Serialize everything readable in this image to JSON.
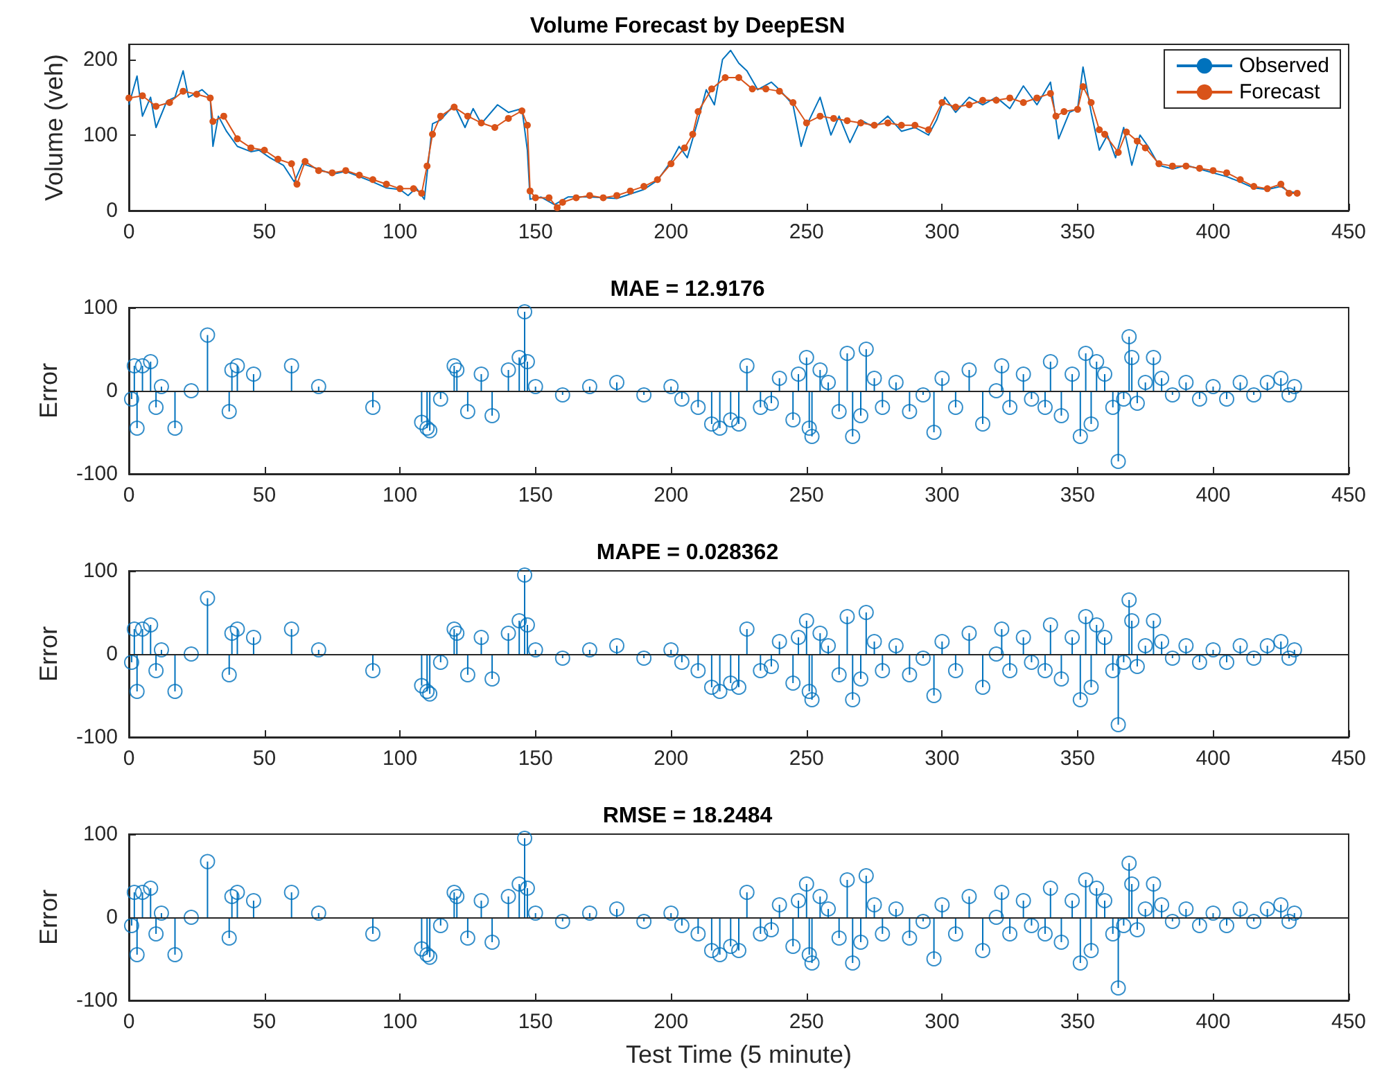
{
  "chart_data": [
    {
      "type": "line",
      "title": "Volume Forecast by DeepESN",
      "ylabel": "Volume (veh)",
      "xlim": [
        0,
        450
      ],
      "xticks": [
        0,
        50,
        100,
        150,
        200,
        250,
        300,
        350,
        400,
        450
      ],
      "ylim": [
        0,
        220
      ],
      "yticks": [
        0,
        100,
        200
      ],
      "grid": false,
      "legend": "top right",
      "series": [
        {
          "name": "Observed",
          "color": "#0072bd",
          "marker": "none",
          "x": [
            0,
            3,
            5,
            8,
            10,
            14,
            17,
            20,
            22,
            27,
            30,
            31,
            33,
            36,
            40,
            45,
            48,
            52,
            57,
            61,
            64,
            70,
            75,
            80,
            85,
            90,
            95,
            100,
            103,
            106,
            109,
            112,
            115,
            120,
            124,
            127,
            130,
            136,
            140,
            145,
            147,
            148,
            152,
            157,
            162,
            170,
            180,
            190,
            195,
            200,
            203,
            206,
            210,
            213,
            216,
            219,
            222,
            225,
            228,
            232,
            237,
            240,
            245,
            248,
            251,
            255,
            259,
            262,
            266,
            270,
            275,
            280,
            285,
            290,
            295,
            298,
            301,
            305,
            310,
            315,
            320,
            325,
            330,
            335,
            340,
            343,
            347,
            350,
            352,
            355,
            358,
            361,
            364,
            367,
            370,
            373,
            376,
            380,
            385,
            390,
            395,
            400,
            405,
            410,
            415,
            420,
            425,
            428,
            430
          ],
          "values": [
            140,
            178,
            125,
            150,
            110,
            145,
            150,
            185,
            150,
            160,
            150,
            85,
            125,
            105,
            85,
            78,
            80,
            70,
            60,
            38,
            62,
            55,
            48,
            52,
            45,
            38,
            30,
            28,
            20,
            30,
            15,
            115,
            120,
            140,
            110,
            135,
            115,
            140,
            130,
            135,
            80,
            15,
            18,
            8,
            18,
            18,
            16,
            28,
            40,
            65,
            85,
            70,
            120,
            160,
            140,
            200,
            212,
            195,
            185,
            160,
            170,
            160,
            140,
            85,
            120,
            150,
            100,
            125,
            90,
            120,
            110,
            125,
            105,
            110,
            100,
            120,
            150,
            130,
            150,
            140,
            150,
            135,
            165,
            140,
            170,
            95,
            130,
            135,
            190,
            130,
            80,
            100,
            70,
            110,
            60,
            100,
            85,
            60,
            55,
            60,
            55,
            50,
            45,
            38,
            30,
            28,
            32,
            25,
            24
          ]
        },
        {
          "name": "Forecast",
          "color": "#d95319",
          "marker": "circle",
          "x": [
            0,
            5,
            10,
            15,
            20,
            25,
            30,
            31,
            35,
            40,
            45,
            50,
            55,
            60,
            62,
            65,
            70,
            75,
            80,
            85,
            90,
            95,
            100,
            105,
            108,
            110,
            112,
            115,
            120,
            125,
            130,
            135,
            140,
            145,
            147,
            148,
            150,
            155,
            158,
            160,
            165,
            170,
            175,
            180,
            185,
            190,
            195,
            200,
            205,
            208,
            210,
            215,
            220,
            225,
            230,
            235,
            240,
            245,
            250,
            255,
            260,
            265,
            270,
            275,
            280,
            285,
            290,
            295,
            300,
            305,
            310,
            315,
            320,
            325,
            330,
            335,
            340,
            342,
            345,
            350,
            352,
            355,
            358,
            360,
            365,
            368,
            372,
            375,
            380,
            385,
            390,
            395,
            400,
            405,
            410,
            415,
            420,
            425,
            428,
            431
          ],
          "values": [
            149,
            152,
            138,
            143,
            158,
            154,
            149,
            118,
            125,
            95,
            83,
            80,
            68,
            62,
            35,
            65,
            53,
            50,
            53,
            47,
            41,
            35,
            29,
            29,
            23,
            59,
            101,
            125,
            137,
            125,
            116,
            110,
            122,
            132,
            113,
            26,
            17,
            17,
            4,
            11,
            17,
            20,
            17,
            20,
            26,
            32,
            41,
            62,
            83,
            101,
            131,
            161,
            176,
            176,
            161,
            161,
            158,
            143,
            116,
            125,
            122,
            119,
            116,
            113,
            116,
            113,
            113,
            107,
            143,
            137,
            140,
            146,
            146,
            149,
            143,
            149,
            155,
            125,
            131,
            134,
            164,
            143,
            107,
            101,
            77,
            104,
            92,
            83,
            62,
            59,
            59,
            56,
            53,
            50,
            41,
            32,
            29,
            35,
            23,
            23
          ]
        }
      ]
    },
    {
      "type": "lollipop",
      "title": "MAE = 12.9176",
      "ylabel": "Error",
      "xlim": [
        0,
        450
      ],
      "xticks": [
        0,
        50,
        100,
        150,
        200,
        250,
        300,
        350,
        400,
        450
      ],
      "ylim": [
        -100,
        100
      ],
      "yticks": [
        -100,
        0,
        100
      ],
      "grid": false,
      "marker": "circle",
      "ref_lines": [
        {
          "axis": "y",
          "value": 0,
          "color": "#262626"
        }
      ],
      "series": [
        {
          "color": "#0072bd",
          "x": [
            1,
            2,
            3,
            5,
            8,
            10,
            12,
            17,
            23,
            29,
            37,
            38,
            40,
            46,
            60,
            70,
            90,
            108,
            110,
            111,
            115,
            120,
            121,
            125,
            130,
            134,
            140,
            144,
            146,
            147,
            150,
            160,
            170,
            180,
            190,
            200,
            204,
            210,
            215,
            218,
            222,
            225,
            228,
            233,
            237,
            240,
            245,
            247,
            250,
            251,
            252,
            255,
            258,
            262,
            265,
            267,
            270,
            272,
            275,
            278,
            283,
            288,
            293,
            297,
            300,
            305,
            310,
            315,
            320,
            322,
            325,
            330,
            333,
            338,
            340,
            344,
            348,
            351,
            353,
            355,
            357,
            360,
            363,
            365,
            367,
            369,
            370,
            372,
            375,
            378,
            381,
            385,
            390,
            395,
            400,
            405,
            410,
            415,
            420,
            425,
            428,
            430
          ],
          "values": [
            -10,
            30,
            -45,
            30,
            35,
            -20,
            5,
            -45,
            0,
            67,
            -25,
            25,
            30,
            20,
            30,
            5,
            -20,
            -38,
            -45,
            -48,
            -10,
            30,
            25,
            -25,
            20,
            -30,
            25,
            40,
            95,
            35,
            5,
            -5,
            5,
            10,
            -5,
            5,
            -10,
            -20,
            -40,
            -45,
            -35,
            -40,
            30,
            -20,
            -15,
            15,
            -35,
            20,
            40,
            -45,
            -55,
            25,
            10,
            -25,
            45,
            -55,
            -30,
            50,
            15,
            -20,
            10,
            -25,
            -5,
            -50,
            15,
            -20,
            25,
            -40,
            0,
            30,
            -20,
            20,
            -10,
            -20,
            35,
            -30,
            20,
            -55,
            45,
            -40,
            35,
            20,
            -20,
            -85,
            -10,
            65,
            40,
            -15,
            10,
            40,
            15,
            -5,
            10,
            -10,
            5,
            -10,
            10,
            -5,
            10,
            15,
            -5,
            5
          ]
        }
      ]
    },
    {
      "type": "lollipop",
      "title": "MAPE = 0.028362",
      "ylabel": "Error",
      "xlim": [
        0,
        450
      ],
      "xticks": [
        0,
        50,
        100,
        150,
        200,
        250,
        300,
        350,
        400,
        450
      ],
      "ylim": [
        -100,
        100
      ],
      "yticks": [
        -100,
        0,
        100
      ],
      "grid": false,
      "marker": "circle",
      "ref_lines": [
        {
          "axis": "y",
          "value": 0,
          "color": "#262626"
        }
      ],
      "series": [
        {
          "color": "#0072bd",
          "x": [
            1,
            2,
            3,
            5,
            8,
            10,
            12,
            17,
            23,
            29,
            37,
            38,
            40,
            46,
            60,
            70,
            90,
            108,
            110,
            111,
            115,
            120,
            121,
            125,
            130,
            134,
            140,
            144,
            146,
            147,
            150,
            160,
            170,
            180,
            190,
            200,
            204,
            210,
            215,
            218,
            222,
            225,
            228,
            233,
            237,
            240,
            245,
            247,
            250,
            251,
            252,
            255,
            258,
            262,
            265,
            267,
            270,
            272,
            275,
            278,
            283,
            288,
            293,
            297,
            300,
            305,
            310,
            315,
            320,
            322,
            325,
            330,
            333,
            338,
            340,
            344,
            348,
            351,
            353,
            355,
            357,
            360,
            363,
            365,
            367,
            369,
            370,
            372,
            375,
            378,
            381,
            385,
            390,
            395,
            400,
            405,
            410,
            415,
            420,
            425,
            428,
            430
          ],
          "values": [
            -10,
            30,
            -45,
            30,
            35,
            -20,
            5,
            -45,
            0,
            67,
            -25,
            25,
            30,
            20,
            30,
            5,
            -20,
            -38,
            -45,
            -48,
            -10,
            30,
            25,
            -25,
            20,
            -30,
            25,
            40,
            95,
            35,
            5,
            -5,
            5,
            10,
            -5,
            5,
            -10,
            -20,
            -40,
            -45,
            -35,
            -40,
            30,
            -20,
            -15,
            15,
            -35,
            20,
            40,
            -45,
            -55,
            25,
            10,
            -25,
            45,
            -55,
            -30,
            50,
            15,
            -20,
            10,
            -25,
            -5,
            -50,
            15,
            -20,
            25,
            -40,
            0,
            30,
            -20,
            20,
            -10,
            -20,
            35,
            -30,
            20,
            -55,
            45,
            -40,
            35,
            20,
            -20,
            -85,
            -10,
            65,
            40,
            -15,
            10,
            40,
            15,
            -5,
            10,
            -10,
            5,
            -10,
            10,
            -5,
            10,
            15,
            -5,
            5
          ]
        }
      ]
    },
    {
      "type": "lollipop",
      "title": "RMSE = 18.2484",
      "ylabel": "Error",
      "xlabel": "Test Time (5 minute)",
      "xlim": [
        0,
        450
      ],
      "xticks": [
        0,
        50,
        100,
        150,
        200,
        250,
        300,
        350,
        400,
        450
      ],
      "ylim": [
        -100,
        100
      ],
      "yticks": [
        -100,
        0,
        100
      ],
      "grid": false,
      "marker": "circle",
      "ref_lines": [
        {
          "axis": "y",
          "value": 0,
          "color": "#262626"
        }
      ],
      "series": [
        {
          "color": "#0072bd",
          "x": [
            1,
            2,
            3,
            5,
            8,
            10,
            12,
            17,
            23,
            29,
            37,
            38,
            40,
            46,
            60,
            70,
            90,
            108,
            110,
            111,
            115,
            120,
            121,
            125,
            130,
            134,
            140,
            144,
            146,
            147,
            150,
            160,
            170,
            180,
            190,
            200,
            204,
            210,
            215,
            218,
            222,
            225,
            228,
            233,
            237,
            240,
            245,
            247,
            250,
            251,
            252,
            255,
            258,
            262,
            265,
            267,
            270,
            272,
            275,
            278,
            283,
            288,
            293,
            297,
            300,
            305,
            310,
            315,
            320,
            322,
            325,
            330,
            333,
            338,
            340,
            344,
            348,
            351,
            353,
            355,
            357,
            360,
            363,
            365,
            367,
            369,
            370,
            372,
            375,
            378,
            381,
            385,
            390,
            395,
            400,
            405,
            410,
            415,
            420,
            425,
            428,
            430
          ],
          "values": [
            -10,
            30,
            -45,
            30,
            35,
            -20,
            5,
            -45,
            0,
            67,
            -25,
            25,
            30,
            20,
            30,
            5,
            -20,
            -38,
            -45,
            -48,
            -10,
            30,
            25,
            -25,
            20,
            -30,
            25,
            40,
            95,
            35,
            5,
            -5,
            5,
            10,
            -5,
            5,
            -10,
            -20,
            -40,
            -45,
            -35,
            -40,
            30,
            -20,
            -15,
            15,
            -35,
            20,
            40,
            -45,
            -55,
            25,
            10,
            -25,
            45,
            -55,
            -30,
            50,
            15,
            -20,
            10,
            -25,
            -5,
            -50,
            15,
            -20,
            25,
            -40,
            0,
            30,
            -20,
            20,
            -10,
            -20,
            35,
            -30,
            20,
            -55,
            45,
            -40,
            35,
            20,
            -20,
            -85,
            -10,
            65,
            40,
            -15,
            10,
            40,
            15,
            -5,
            10,
            -10,
            5,
            -10,
            10,
            -5,
            10,
            15,
            -5,
            5
          ]
        }
      ]
    }
  ]
}
